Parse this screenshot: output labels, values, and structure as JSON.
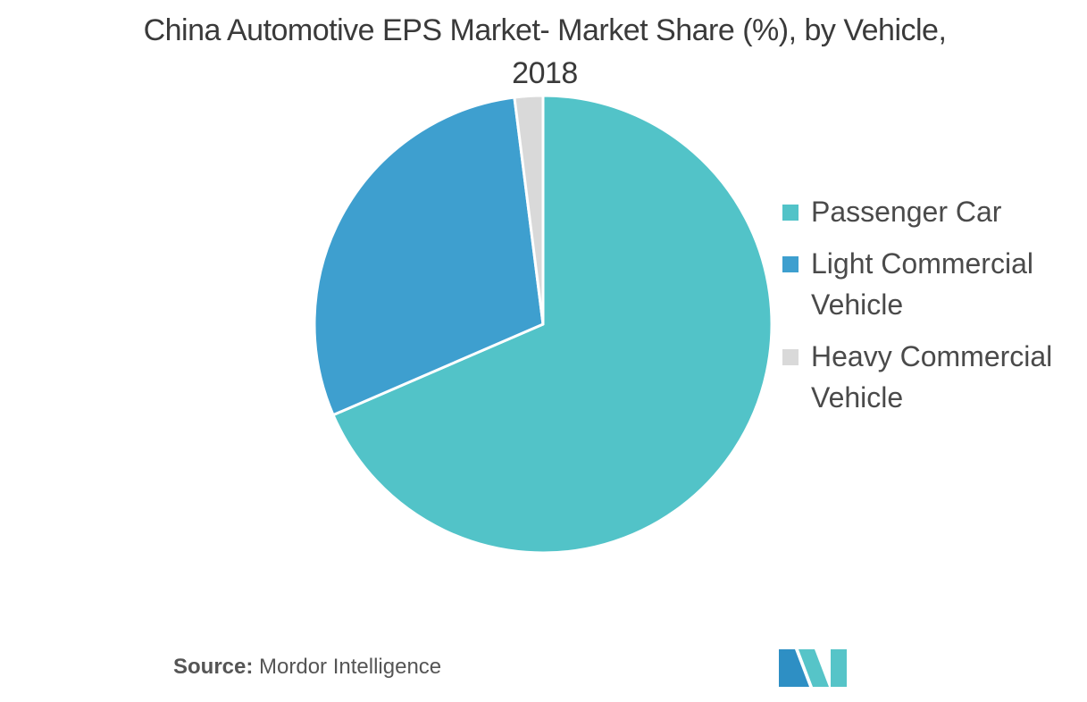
{
  "chart_data": {
    "type": "pie",
    "title": "China Automotive EPS Market- Market Share (%), by Vehicle, 2018",
    "slices": [
      {
        "label": "Passenger Car",
        "value": 68.5,
        "color": "#52C3C8"
      },
      {
        "label": "Light Commercial Vehicle",
        "value": 29.5,
        "color": "#3E9FCF"
      },
      {
        "label": "Heavy Commercial Vehicle",
        "value": 2.0,
        "color": "#D9D9D9"
      }
    ],
    "legend_position": "right"
  },
  "source": {
    "label": "Source:",
    "text": "Mordor Intelligence"
  },
  "logo": {
    "icon": "mordor-intelligence-logo-icon",
    "colors": [
      "#2E8FC4",
      "#56C4C8"
    ]
  }
}
